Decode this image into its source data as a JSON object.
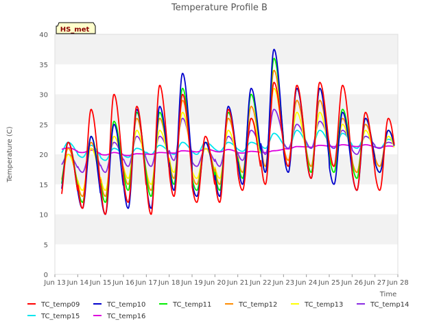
{
  "chart_data": {
    "type": "line",
    "title": "Temperature Profile B",
    "xlabel": "Time",
    "ylabel": "Temperature (C)",
    "site_badge": "HS_met",
    "xlim": [
      "2024-06-13",
      "2024-06-28"
    ],
    "ylim": [
      0,
      40
    ],
    "yticks": [
      0,
      5,
      10,
      15,
      20,
      25,
      30,
      35,
      40
    ],
    "xtick_labels": [
      "Jun 13",
      "Jun 14",
      "Jun 15",
      "Jun 16",
      "Jun 17",
      "Jun 18",
      "Jun 19",
      "Jun 20",
      "Jun 21",
      "Jun 22",
      "Jun 23",
      "Jun 24",
      "Jun 25",
      "Jun 26",
      "Jun 27",
      "Jun 28"
    ],
    "grid": true,
    "legend_position": "bottom",
    "x": [
      "2024-06-13",
      "2024-06-14",
      "2024-06-15",
      "2024-06-16",
      "2024-06-17",
      "2024-06-18",
      "2024-06-19",
      "2024-06-20",
      "2024-06-21",
      "2024-06-22",
      "2024-06-23",
      "2024-06-24",
      "2024-06-25",
      "2024-06-26",
      "2024-06-27"
    ],
    "series": [
      {
        "name": "TC_temp09",
        "color": "#ff0000",
        "daily_min": [
          12,
          11,
          10,
          12,
          10,
          13,
          12,
          12,
          14,
          15,
          18,
          16,
          18,
          14,
          14
        ],
        "daily_max": [
          22,
          27.5,
          30,
          28,
          31.5,
          30,
          23,
          27.5,
          26,
          32,
          31.5,
          32,
          31.5,
          27,
          26
        ]
      },
      {
        "name": "TC_temp10",
        "color": "#0000cc",
        "daily_min": [
          13,
          11,
          10,
          11,
          11,
          14,
          13,
          13,
          15,
          17,
          17,
          16,
          15,
          14,
          17
        ],
        "daily_max": [
          22,
          23,
          25,
          27.5,
          28,
          33.5,
          22,
          28,
          31,
          37.5,
          31,
          31,
          27,
          26,
          24
        ]
      },
      {
        "name": "TC_temp11",
        "color": "#00ee00",
        "daily_min": [
          14,
          12,
          12,
          14,
          13,
          15,
          14,
          14,
          16,
          17,
          18,
          17,
          17,
          16,
          17
        ],
        "daily_max": [
          22,
          23,
          25.5,
          27,
          27,
          31,
          22,
          27,
          30,
          36,
          31,
          31,
          27.5,
          26,
          24
        ]
      },
      {
        "name": "TC_temp12",
        "color": "#ff8c00",
        "daily_min": [
          15,
          13,
          13,
          15,
          14,
          16,
          15,
          15,
          17,
          18,
          19,
          18,
          18,
          17,
          18
        ],
        "daily_max": [
          21,
          22,
          25,
          26,
          26,
          29,
          22,
          26,
          28,
          34,
          29,
          29,
          26,
          25,
          24
        ]
      },
      {
        "name": "TC_temp13",
        "color": "#ffff00",
        "daily_min": [
          15,
          14,
          14,
          16,
          15,
          17,
          16,
          16,
          17,
          18,
          19,
          18,
          18,
          17,
          18
        ],
        "daily_max": [
          20,
          21,
          23,
          24,
          24,
          27,
          21,
          24,
          26,
          31,
          27,
          27,
          25,
          24,
          23
        ]
      },
      {
        "name": "TC_temp14",
        "color": "#8a2be2",
        "daily_min": [
          18,
          17,
          17,
          18,
          18,
          19,
          18,
          18,
          19,
          20,
          21,
          21,
          21,
          20,
          21
        ],
        "daily_max": [
          20,
          21,
          22,
          23,
          23,
          26,
          21,
          23,
          24,
          27.5,
          25,
          25.5,
          24,
          23,
          22
        ]
      },
      {
        "name": "TC_temp15",
        "color": "#00e5ee",
        "daily_min": [
          20,
          19.5,
          19,
          19.5,
          20,
          20,
          20,
          20.5,
          20.5,
          21,
          21,
          21,
          21,
          21,
          21
        ],
        "daily_max": [
          22,
          21.5,
          21,
          21,
          21.5,
          22,
          22,
          22,
          22,
          23.5,
          24,
          24,
          23.5,
          23,
          22.5
        ]
      },
      {
        "name": "TC_temp16",
        "color": "#dd00dd",
        "daily_min": [
          20.8,
          20.3,
          19.9,
          19.8,
          20.0,
          20.2,
          20.4,
          20.4,
          20.2,
          20.3,
          20.9,
          21.2,
          21.3,
          21.3,
          21.1
        ],
        "daily_max": [
          21.1,
          20.7,
          20.3,
          20.1,
          20.3,
          20.6,
          20.9,
          20.8,
          20.5,
          20.6,
          21.3,
          21.5,
          21.6,
          21.6,
          21.4
        ]
      }
    ]
  }
}
